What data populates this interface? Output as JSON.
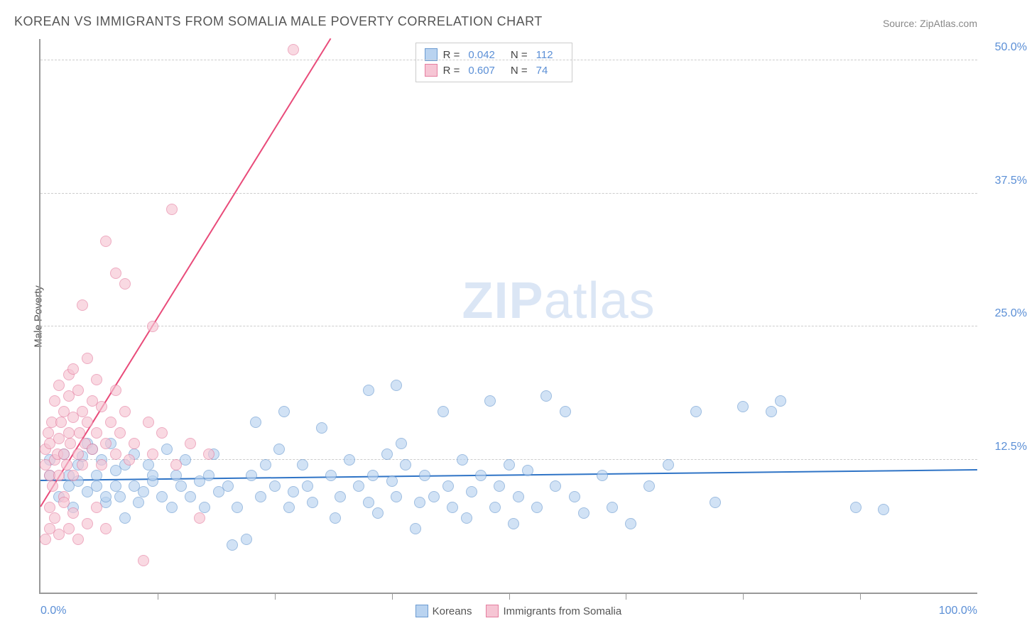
{
  "title": "KOREAN VS IMMIGRANTS FROM SOMALIA MALE POVERTY CORRELATION CHART",
  "source": "Source: ZipAtlas.com",
  "ylabel": "Male Poverty",
  "watermark_zip": "ZIP",
  "watermark_atlas": "atlas",
  "chart": {
    "type": "scatter",
    "xlim": [
      0,
      100
    ],
    "ylim": [
      0,
      52
    ],
    "yticks": [
      {
        "v": 12.5,
        "label": "12.5%"
      },
      {
        "v": 25.0,
        "label": "25.0%"
      },
      {
        "v": 37.5,
        "label": "37.5%"
      },
      {
        "v": 50.0,
        "label": "50.0%"
      }
    ],
    "xticks_major": [
      0,
      100
    ],
    "xticks_minor": [
      12.5,
      25,
      37.5,
      50,
      62.5,
      75,
      87.5
    ],
    "xtick_labels": [
      {
        "v": 0,
        "label": "0.0%"
      },
      {
        "v": 100,
        "label": "100.0%"
      }
    ],
    "background_color": "#ffffff",
    "grid_color": "#cccccc",
    "axis_color": "#999999",
    "point_radius": 8,
    "point_stroke_width": 1.2,
    "series": [
      {
        "name": "Koreans",
        "fill": "#b9d3f0",
        "stroke": "#6b9bd1",
        "fill_opacity": 0.65,
        "R": "0.042",
        "N": "112",
        "trend": {
          "y_at_x0": 10.5,
          "y_at_x100": 11.5,
          "color": "#2f74c6",
          "width": 2
        },
        "points": [
          [
            1,
            11
          ],
          [
            1,
            12.5
          ],
          [
            2,
            9
          ],
          [
            2.5,
            13
          ],
          [
            3,
            11
          ],
          [
            3,
            10
          ],
          [
            3.5,
            8
          ],
          [
            4,
            12
          ],
          [
            4,
            10.5
          ],
          [
            4.5,
            12.8
          ],
          [
            5,
            14
          ],
          [
            5,
            9.5
          ],
          [
            5.5,
            13.5
          ],
          [
            6,
            11
          ],
          [
            6,
            10
          ],
          [
            6.5,
            12.5
          ],
          [
            7,
            8.5
          ],
          [
            7,
            9
          ],
          [
            7.5,
            14
          ],
          [
            8,
            10
          ],
          [
            8,
            11.5
          ],
          [
            8.5,
            9
          ],
          [
            9,
            12
          ],
          [
            9,
            7
          ],
          [
            10,
            10
          ],
          [
            10,
            13
          ],
          [
            10.5,
            8.5
          ],
          [
            11,
            9.5
          ],
          [
            11.5,
            12
          ],
          [
            12,
            10.5
          ],
          [
            12,
            11
          ],
          [
            13,
            9
          ],
          [
            13.5,
            13.5
          ],
          [
            14,
            8
          ],
          [
            14.5,
            11
          ],
          [
            15,
            10
          ],
          [
            15.5,
            12.5
          ],
          [
            16,
            9
          ],
          [
            17,
            10.5
          ],
          [
            17.5,
            8
          ],
          [
            18,
            11
          ],
          [
            18.5,
            13
          ],
          [
            19,
            9.5
          ],
          [
            20,
            10
          ],
          [
            20.5,
            4.5
          ],
          [
            21,
            8
          ],
          [
            22,
            5
          ],
          [
            22.5,
            11
          ],
          [
            23,
            16
          ],
          [
            23.5,
            9
          ],
          [
            24,
            12
          ],
          [
            25,
            10
          ],
          [
            25.5,
            13.5
          ],
          [
            26,
            17
          ],
          [
            26.5,
            8
          ],
          [
            27,
            9.5
          ],
          [
            28,
            12
          ],
          [
            28.5,
            10
          ],
          [
            29,
            8.5
          ],
          [
            30,
            15.5
          ],
          [
            31,
            11
          ],
          [
            31.5,
            7
          ],
          [
            32,
            9
          ],
          [
            33,
            12.5
          ],
          [
            34,
            10
          ],
          [
            35,
            8.5
          ],
          [
            35,
            19
          ],
          [
            35.5,
            11
          ],
          [
            36,
            7.5
          ],
          [
            37,
            13
          ],
          [
            37.5,
            10.5
          ],
          [
            38,
            9
          ],
          [
            38,
            19.5
          ],
          [
            38.5,
            14
          ],
          [
            39,
            12
          ],
          [
            40,
            6
          ],
          [
            40.5,
            8.5
          ],
          [
            41,
            11
          ],
          [
            42,
            9
          ],
          [
            43,
            17
          ],
          [
            43.5,
            10
          ],
          [
            44,
            8
          ],
          [
            45,
            12.5
          ],
          [
            45.5,
            7
          ],
          [
            46,
            9.5
          ],
          [
            47,
            11
          ],
          [
            48,
            18
          ],
          [
            48.5,
            8
          ],
          [
            49,
            10
          ],
          [
            50,
            12
          ],
          [
            50.5,
            6.5
          ],
          [
            51,
            9
          ],
          [
            52,
            11.5
          ],
          [
            53,
            8
          ],
          [
            54,
            18.5
          ],
          [
            55,
            10
          ],
          [
            56,
            17
          ],
          [
            57,
            9
          ],
          [
            58,
            7.5
          ],
          [
            60,
            11
          ],
          [
            61,
            8
          ],
          [
            63,
            6.5
          ],
          [
            65,
            10
          ],
          [
            67,
            12
          ],
          [
            70,
            17
          ],
          [
            72,
            8.5
          ],
          [
            75,
            17.5
          ],
          [
            78,
            17
          ],
          [
            79,
            18
          ],
          [
            87,
            8
          ],
          [
            90,
            7.8
          ]
        ]
      },
      {
        "name": "Immigrants from Somalia",
        "fill": "#f6c5d4",
        "stroke": "#e57fa0",
        "fill_opacity": 0.65,
        "R": "0.607",
        "N": "74",
        "trend": {
          "y_at_x0": 8,
          "y_at_x100": 150,
          "color": "#e94b7a",
          "width": 2,
          "dash_after_x": 32
        },
        "points": [
          [
            0.5,
            12
          ],
          [
            0.5,
            13.5
          ],
          [
            0.8,
            15
          ],
          [
            1,
            11
          ],
          [
            1,
            14
          ],
          [
            1,
            8
          ],
          [
            1.2,
            16
          ],
          [
            1.3,
            10
          ],
          [
            1.5,
            12.5
          ],
          [
            1.5,
            18
          ],
          [
            1.8,
            13
          ],
          [
            2,
            14.5
          ],
          [
            2,
            11
          ],
          [
            2,
            19.5
          ],
          [
            2.2,
            16
          ],
          [
            2.5,
            9
          ],
          [
            2.5,
            13
          ],
          [
            2.5,
            17
          ],
          [
            2.8,
            12
          ],
          [
            3,
            15
          ],
          [
            3,
            18.5
          ],
          [
            3,
            20.5
          ],
          [
            3.2,
            14
          ],
          [
            3.5,
            11
          ],
          [
            3.5,
            16.5
          ],
          [
            3.5,
            21
          ],
          [
            4,
            13
          ],
          [
            4,
            19
          ],
          [
            4.2,
            15
          ],
          [
            4.5,
            12
          ],
          [
            4.5,
            17
          ],
          [
            4.5,
            27
          ],
          [
            4.8,
            14
          ],
          [
            5,
            22
          ],
          [
            5,
            16
          ],
          [
            5.5,
            13.5
          ],
          [
            5.5,
            18
          ],
          [
            6,
            15
          ],
          [
            6,
            20
          ],
          [
            6.5,
            12
          ],
          [
            6.5,
            17.5
          ],
          [
            7,
            14
          ],
          [
            7,
            33
          ],
          [
            7.5,
            16
          ],
          [
            8,
            13
          ],
          [
            8,
            19
          ],
          [
            8,
            30
          ],
          [
            8.5,
            15
          ],
          [
            9,
            17
          ],
          [
            9,
            29
          ],
          [
            9.5,
            12.5
          ],
          [
            10,
            14
          ],
          [
            11,
            3
          ],
          [
            11.5,
            16
          ],
          [
            12,
            13
          ],
          [
            12,
            25
          ],
          [
            13,
            15
          ],
          [
            14,
            36
          ],
          [
            14.5,
            12
          ],
          [
            16,
            14
          ],
          [
            17,
            7
          ],
          [
            18,
            13
          ],
          [
            27,
            51
          ],
          [
            0.5,
            5
          ],
          [
            1,
            6
          ],
          [
            1.5,
            7
          ],
          [
            2,
            5.5
          ],
          [
            2.5,
            8.5
          ],
          [
            3,
            6
          ],
          [
            3.5,
            7.5
          ],
          [
            4,
            5
          ],
          [
            5,
            6.5
          ],
          [
            6,
            8
          ],
          [
            7,
            6
          ]
        ]
      }
    ]
  },
  "legend_bottom": [
    {
      "label": "Koreans",
      "fill": "#b9d3f0",
      "stroke": "#6b9bd1"
    },
    {
      "label": "Immigrants from Somalia",
      "fill": "#f6c5d4",
      "stroke": "#e57fa0"
    }
  ]
}
